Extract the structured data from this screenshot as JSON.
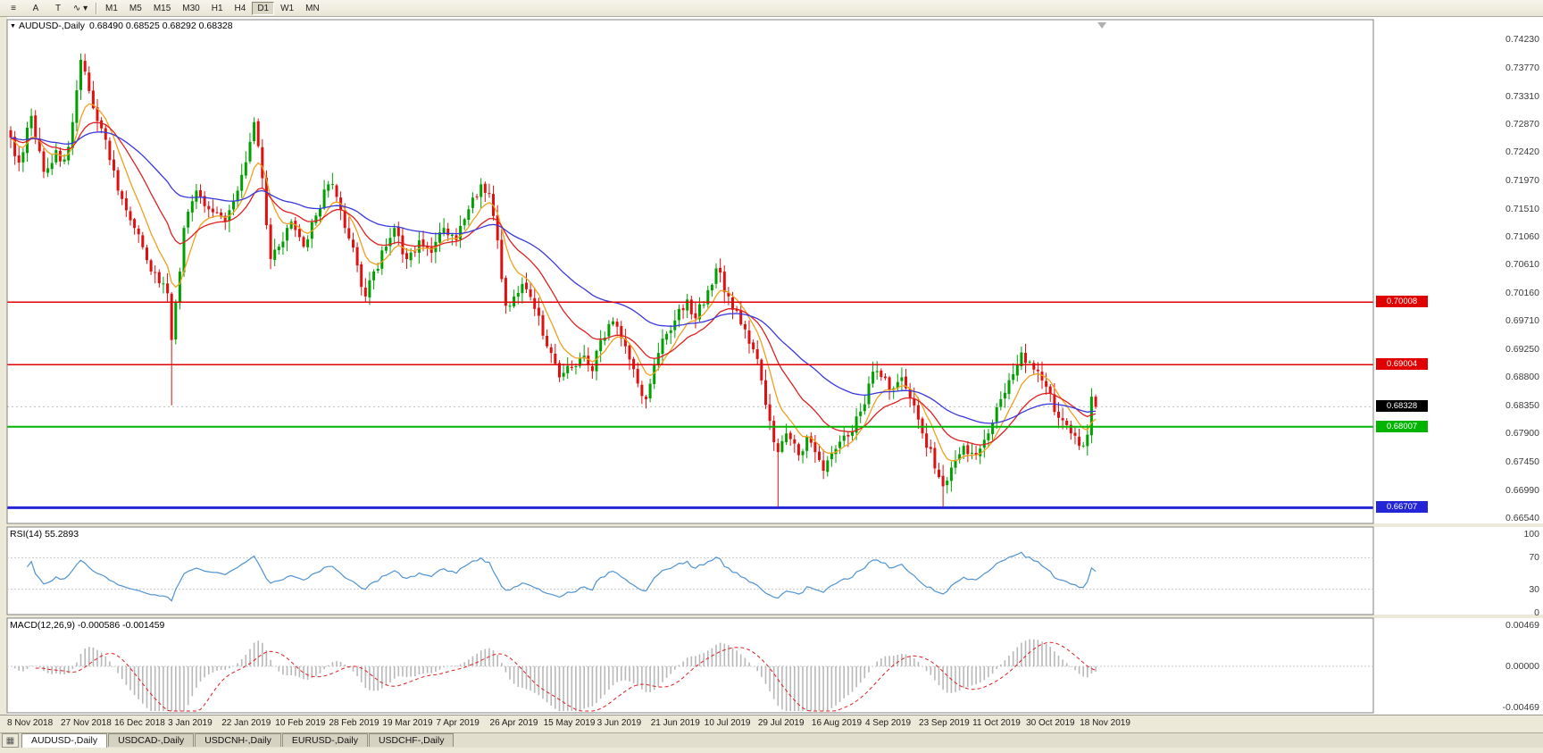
{
  "toolbar": {
    "tools": [
      {
        "name": "charts-list-icon",
        "glyph": "≡"
      },
      {
        "name": "cursor-tool-button",
        "glyph": "A"
      },
      {
        "name": "text-tool-button",
        "glyph": "T"
      },
      {
        "name": "line-tools-dropdown",
        "glyph": "∿ ▾"
      }
    ],
    "timeframes": [
      "M1",
      "M5",
      "M15",
      "M30",
      "H1",
      "H4",
      "D1",
      "W1",
      "MN"
    ],
    "active_timeframe": "D1"
  },
  "main_chart": {
    "title_marker": "▼",
    "title_symbol": "AUDUSD-,Daily",
    "title_ohlc": "0.68490 0.68525 0.68292 0.68328"
  },
  "rsi_panel": {
    "label": "RSI(14)",
    "value": "55.2893"
  },
  "macd_panel": {
    "label": "MACD(12,26,9)",
    "values": "-0.000586 -0.001459"
  },
  "chart_data": {
    "type": "candlestick",
    "symbol": "AUDUSD-",
    "timeframe": "Daily",
    "bar_count": 264,
    "y_axis": {
      "min": 0.6654,
      "max": 0.7423
    },
    "price_axis_ticks": [
      "0.74230",
      "0.73770",
      "0.73310",
      "0.72870",
      "0.72420",
      "0.71970",
      "0.71510",
      "0.71060",
      "0.70610",
      "0.70160",
      "0.69710",
      "0.69250",
      "0.68800",
      "0.68350",
      "0.67900",
      "0.67450",
      "0.66990",
      "0.66540"
    ],
    "date_labels": [
      "8 Nov 2018",
      "27 Nov 2018",
      "16 Dec 2018",
      "3 Jan 2019",
      "22 Jan 2019",
      "10 Feb 2019",
      "28 Feb 2019",
      "19 Mar 2019",
      "7 Apr 2019",
      "26 Apr 2019",
      "15 May 2019",
      "3 Jun 2019",
      "21 Jun 2019",
      "10 Jul 2019",
      "29 Jul 2019",
      "16 Aug 2019",
      "4 Sep 2019",
      "23 Sep 2019",
      "11 Oct 2019",
      "30 Oct 2019",
      "18 Nov 2019"
    ],
    "bars_per_label": 13,
    "levels": [
      {
        "value": 0.70008,
        "label": "0.70008",
        "color": "#e00000",
        "width": 1.5
      },
      {
        "value": 0.69004,
        "label": "0.69004",
        "color": "#e00000",
        "width": 1.5
      },
      {
        "value": 0.68007,
        "label": "0.68007",
        "color": "#00b400",
        "width": 2
      },
      {
        "value": 0.66707,
        "label": "0.66707",
        "color": "#2525d8",
        "width": 3
      }
    ],
    "current_price": {
      "value": 0.68328,
      "label": "0.68328",
      "bg": "#000000"
    },
    "last_bar": {
      "open": 0.6849,
      "high": 0.68525,
      "low": 0.68292,
      "close": 0.68328
    },
    "up_color": "#00a000",
    "down_color": "#e01010",
    "moving_averages": [
      {
        "period": 8,
        "type": "ema",
        "color": "#f0a020"
      },
      {
        "period": 20,
        "type": "ema",
        "color": "#e02020"
      },
      {
        "period": 50,
        "type": "ema",
        "color": "#3838dd"
      }
    ],
    "price_anchors": [
      [
        0,
        0.7265
      ],
      [
        2,
        0.7225
      ],
      [
        5,
        0.73
      ],
      [
        8,
        0.721
      ],
      [
        11,
        0.7245
      ],
      [
        13,
        0.723
      ],
      [
        15,
        0.729
      ],
      [
        17,
        0.739
      ],
      [
        19,
        0.734
      ],
      [
        22,
        0.728
      ],
      [
        26,
        0.718
      ],
      [
        30,
        0.712
      ],
      [
        34,
        0.705
      ],
      [
        38,
        0.7015
      ],
      [
        39,
        0.694
      ],
      [
        40,
        0.7
      ],
      [
        42,
        0.712
      ],
      [
        45,
        0.718
      ],
      [
        48,
        0.715
      ],
      [
        52,
        0.713
      ],
      [
        55,
        0.718
      ],
      [
        59,
        0.729
      ],
      [
        61,
        0.72
      ],
      [
        63,
        0.707
      ],
      [
        65,
        0.709
      ],
      [
        68,
        0.713
      ],
      [
        71,
        0.709
      ],
      [
        74,
        0.714
      ],
      [
        77,
        0.719
      ],
      [
        79,
        0.717
      ],
      [
        81,
        0.712
      ],
      [
        84,
        0.706
      ],
      [
        86,
        0.701
      ],
      [
        88,
        0.705
      ],
      [
        91,
        0.709
      ],
      [
        93,
        0.712
      ],
      [
        96,
        0.707
      ],
      [
        99,
        0.71
      ],
      [
        102,
        0.708
      ],
      [
        105,
        0.712
      ],
      [
        108,
        0.71
      ],
      [
        111,
        0.715
      ],
      [
        114,
        0.719
      ],
      [
        116,
        0.7175
      ],
      [
        118,
        0.71
      ],
      [
        120,
        0.6995
      ],
      [
        122,
        0.701
      ],
      [
        124,
        0.703
      ],
      [
        127,
        0.699
      ],
      [
        130,
        0.693
      ],
      [
        133,
        0.688
      ],
      [
        136,
        0.6895
      ],
      [
        139,
        0.6915
      ],
      [
        141,
        0.689
      ],
      [
        143,
        0.694
      ],
      [
        146,
        0.697
      ],
      [
        149,
        0.693
      ],
      [
        152,
        0.687
      ],
      [
        154,
        0.6845
      ],
      [
        156,
        0.69
      ],
      [
        159,
        0.695
      ],
      [
        162,
        0.699
      ],
      [
        164,
        0.7005
      ],
      [
        166,
        0.6975
      ],
      [
        169,
        0.702
      ],
      [
        171,
        0.7055
      ],
      [
        174,
        0.701
      ],
      [
        177,
        0.6965
      ],
      [
        180,
        0.6925
      ],
      [
        182,
        0.6875
      ],
      [
        184,
        0.681
      ],
      [
        186,
        0.676
      ],
      [
        188,
        0.679
      ],
      [
        191,
        0.6755
      ],
      [
        193,
        0.6785
      ],
      [
        195,
        0.676
      ],
      [
        197,
        0.673
      ],
      [
        200,
        0.6765
      ],
      [
        203,
        0.6785
      ],
      [
        206,
        0.6825
      ],
      [
        208,
        0.687
      ],
      [
        210,
        0.689
      ],
      [
        213,
        0.686
      ],
      [
        216,
        0.688
      ],
      [
        219,
        0.6835
      ],
      [
        221,
        0.679
      ],
      [
        223,
        0.6765
      ],
      [
        225,
        0.672
      ],
      [
        226,
        0.6705
      ],
      [
        228,
        0.6735
      ],
      [
        231,
        0.677
      ],
      [
        234,
        0.6755
      ],
      [
        237,
        0.679
      ],
      [
        240,
        0.6845
      ],
      [
        243,
        0.6885
      ],
      [
        245,
        0.692
      ],
      [
        247,
        0.6905
      ],
      [
        249,
        0.689
      ],
      [
        251,
        0.6865
      ],
      [
        254,
        0.6815
      ],
      [
        257,
        0.679
      ],
      [
        259,
        0.677
      ],
      [
        261,
        0.6788
      ],
      [
        262,
        0.6849
      ],
      [
        263,
        0.68328
      ]
    ],
    "spikes": [
      {
        "i": 17,
        "high": 0.74
      },
      {
        "i": 39,
        "low": 0.6835
      },
      {
        "i": 154,
        "low": 0.683
      },
      {
        "i": 186,
        "low": 0.667
      },
      {
        "i": 226,
        "low": 0.6671
      }
    ],
    "rsi": {
      "period": 14,
      "current": 55.2893,
      "range": [
        0,
        100
      ],
      "levels": [
        70,
        30
      ],
      "scale_ticks": [
        "100",
        "70",
        "30",
        "0"
      ],
      "color": "#4f93d1"
    },
    "macd": {
      "fast": 12,
      "slow": 26,
      "signal": 9,
      "macd_value": -0.000586,
      "signal_value": -0.001459,
      "scale_ticks": [
        "0.00469",
        "0.00000",
        "-0.00469"
      ],
      "histogram_color": "#b8b8b8",
      "signal_color": "#e02020"
    }
  },
  "tab_bar": {
    "window_icon": "▦",
    "tabs": [
      {
        "label": "AUDUSD-,Daily",
        "active": true
      },
      {
        "label": "USDCAD-,Daily",
        "active": false
      },
      {
        "label": "USDCNH-,Daily",
        "active": false
      },
      {
        "label": "EURUSD-,Daily",
        "active": false
      },
      {
        "label": "USDCHF-,Daily",
        "active": false
      }
    ]
  }
}
